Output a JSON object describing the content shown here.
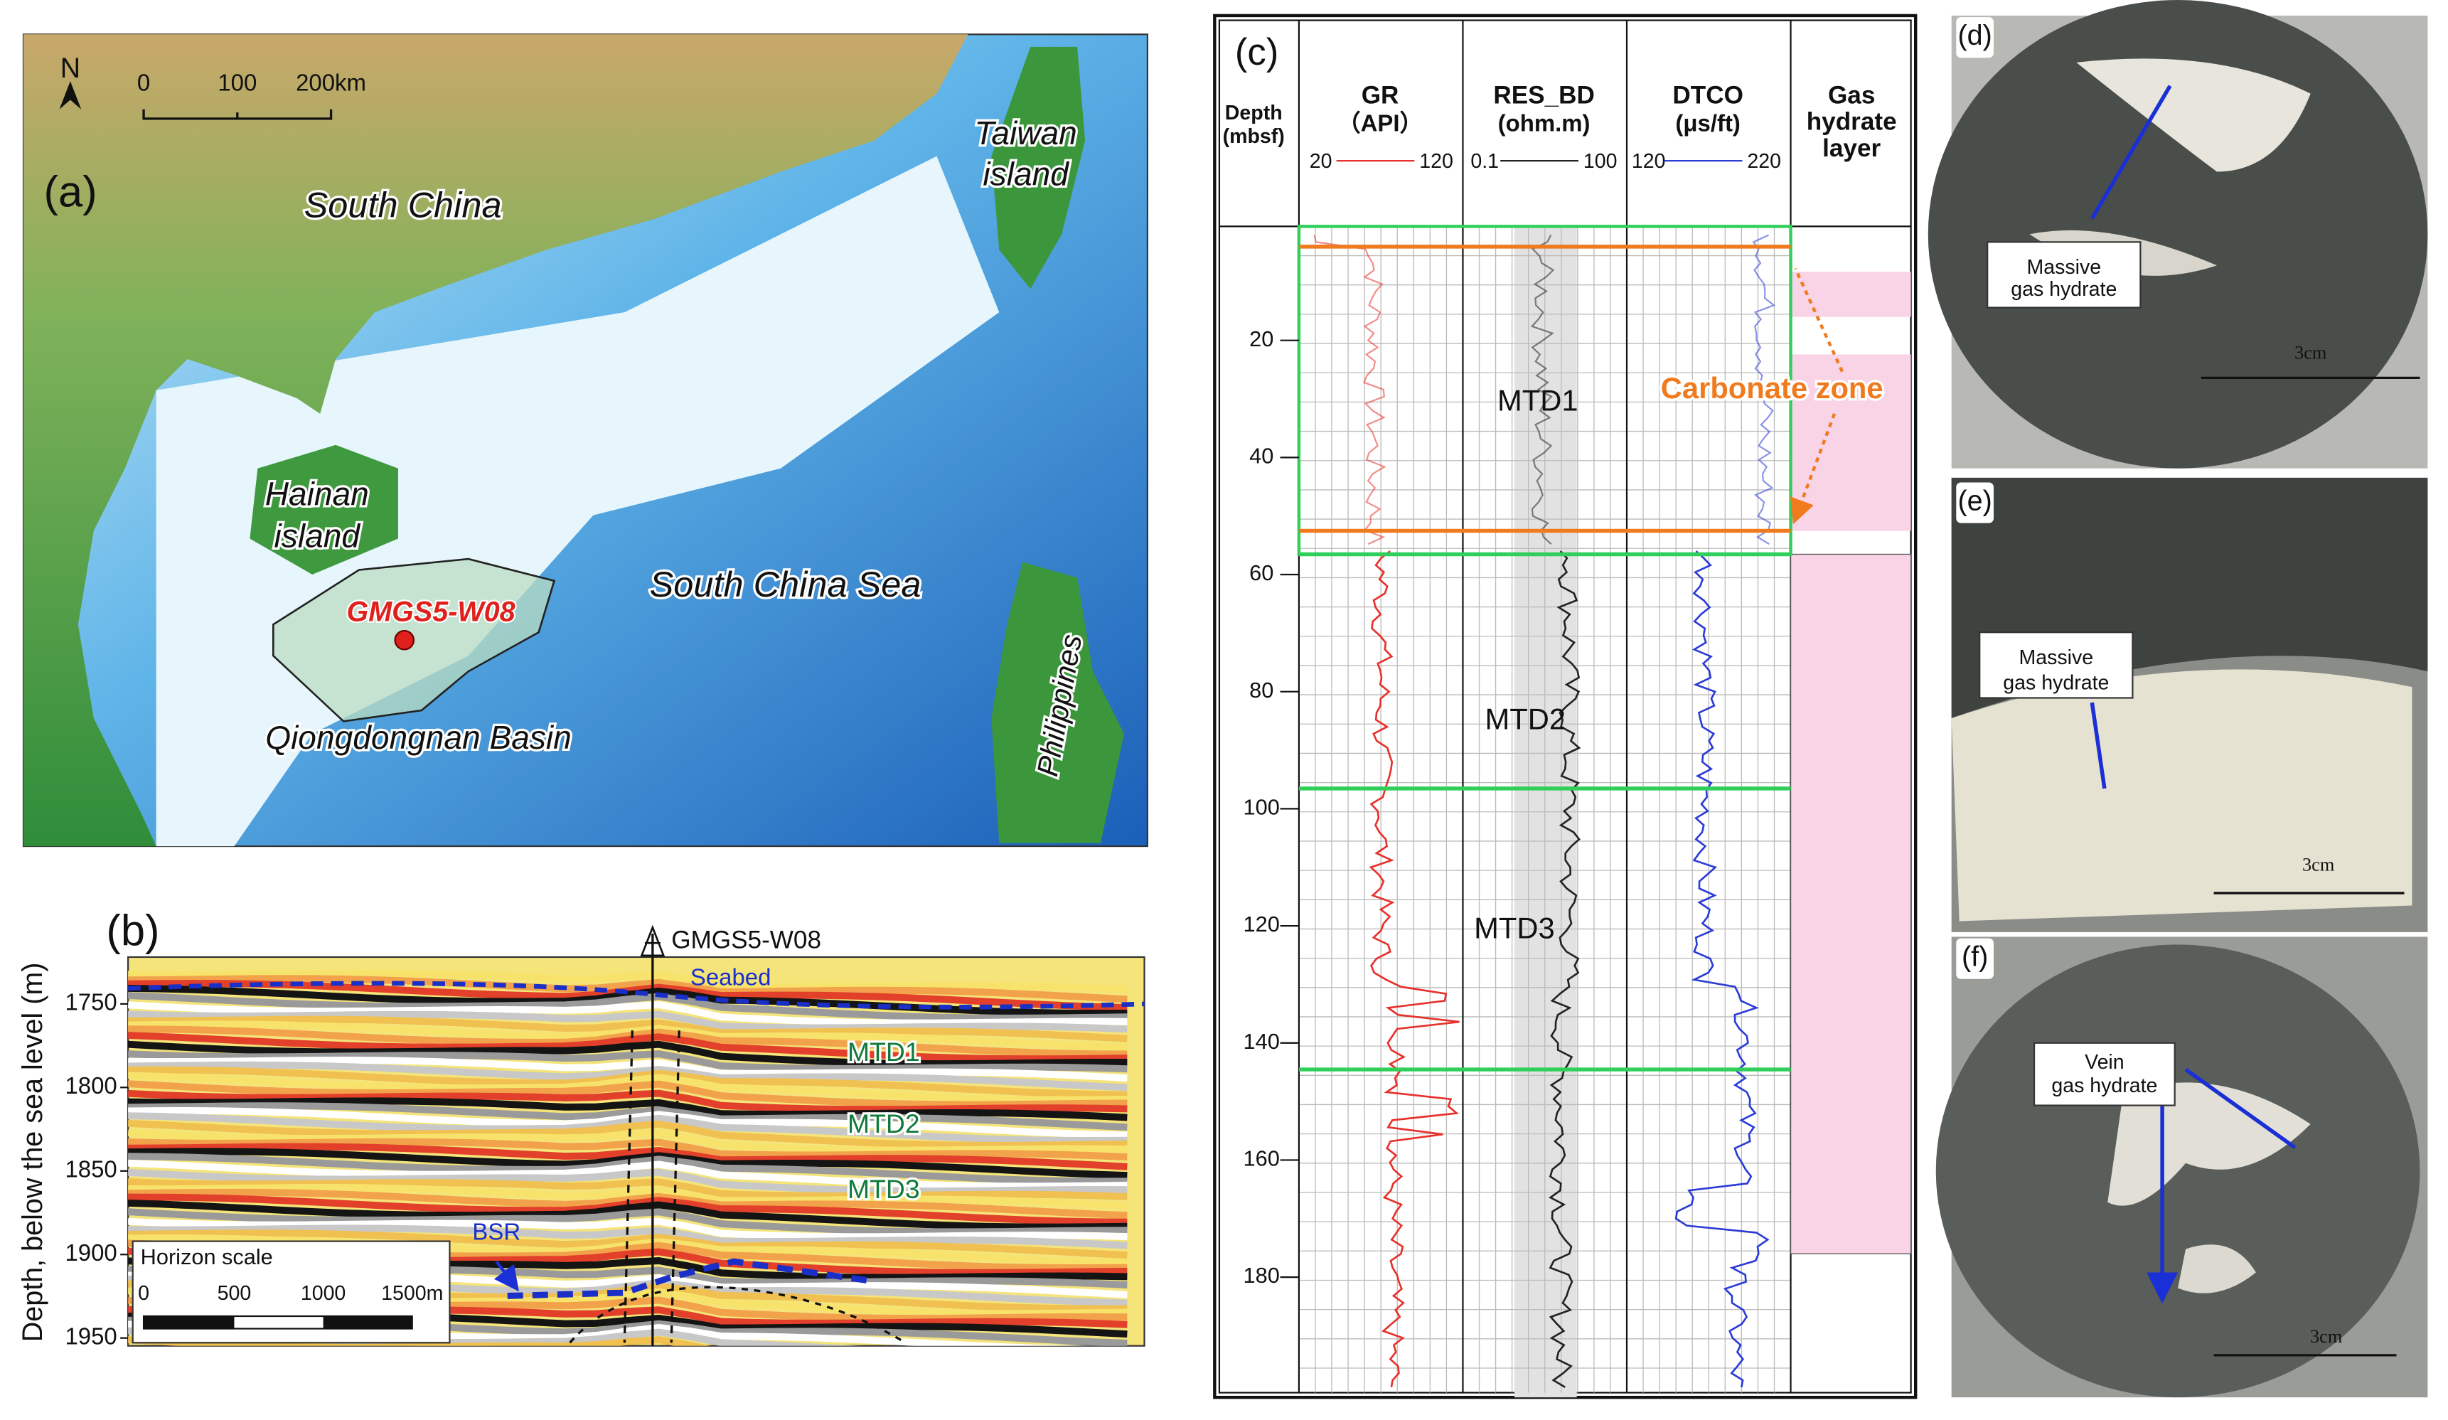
{
  "panels": {
    "a": {
      "label": "(a)",
      "north": "N",
      "scale": [
        "0",
        "100",
        "200km"
      ],
      "south_china": "South China",
      "taiwan": [
        "Taiwan",
        "island"
      ],
      "hainan": [
        "Hainan",
        "island"
      ],
      "well": "GMGS5-W08",
      "sea": "South China Sea",
      "basin": "Qiongdongnan Basin",
      "philippines": "Philippines"
    },
    "b": {
      "label": "(b)",
      "y_title": "Depth, below the sea level (m)",
      "yticks": [
        1750,
        1800,
        1850,
        1900,
        1950
      ],
      "well": "GMGS5-W08",
      "seabed": "Seabed",
      "units": [
        "MTD1",
        "MTD2",
        "MTD3"
      ],
      "bsr": "BSR",
      "scale_title": "Horizon scale",
      "scale_ticks": [
        "0",
        "500",
        "1000",
        "1500m"
      ]
    },
    "c": {
      "label": "(c)",
      "depth_title": [
        "Depth",
        "(mbsf)"
      ],
      "tracks": [
        {
          "name": "GR",
          "unit": "（API）",
          "range": [
            "20",
            "120"
          ],
          "color": "#e8302a"
        },
        {
          "name": "RES_BD",
          "unit": "(ohm.m)",
          "range": [
            "0.1",
            "100"
          ],
          "color": "#222222"
        },
        {
          "name": "DTCO",
          "unit": "(μs/ft)",
          "range": [
            "120",
            "220"
          ],
          "color": "#2b3bd6"
        }
      ],
      "hydrate_title": [
        "Gas",
        "hydrate",
        "layer"
      ],
      "depth_ticks": [
        20,
        40,
        60,
        80,
        100,
        120,
        140,
        160,
        180
      ],
      "units": [
        "MTD1",
        "MTD2",
        "MTD3"
      ],
      "carbonate": "Carbonate zone"
    },
    "d": {
      "label": "(d)",
      "note": [
        "Massive",
        "gas hydrate"
      ],
      "scale": "3cm"
    },
    "e": {
      "label": "(e)",
      "note": [
        "Massive",
        "gas hydrate"
      ],
      "scale": "3cm"
    },
    "f": {
      "label": "(f)",
      "note": [
        "Vein",
        "gas hydrate"
      ],
      "scale": "3cm"
    }
  }
}
